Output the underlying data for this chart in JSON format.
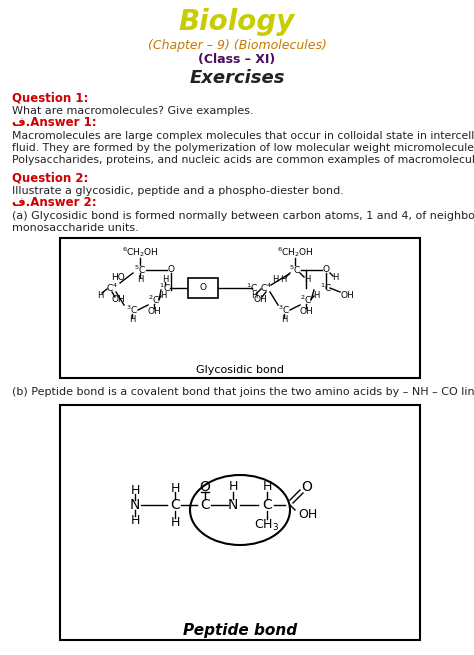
{
  "title": "Biology",
  "subtitle1": "(Chapter – 9) (Biomolecules)",
  "subtitle2": "(Class – XI)",
  "section": "Exercises",
  "q1_label": "Question 1:",
  "q1_text": "What are macromolecules? Give examples.",
  "a1_label": "ف.Answer 1:",
  "a1_line1": "Macromolecules are large complex molecules that occur in colloidal state in intercellular",
  "a1_line2": "fluid. They are formed by the polymerization of low molecular weight micromolecules.",
  "a1_line3": "Polysaccharides, proteins, and nucleic acids are common examples of macromolecules.",
  "q2_label": "Question 2:",
  "q2_text": "Illustrate a glycosidic, peptide and a phospho-diester bond.",
  "a2_label": "ف.Answer 2:",
  "a2a_line1": "(a) Glycosidic bond is formed normally between carbon atoms, 1 and 4, of neighbouring",
  "a2a_line2": "monosaccharide units.",
  "glycosidic_label": "Glycosidic bond",
  "a2b_text": "(b) Peptide bond is a covalent bond that joins the two amino acids by – NH – CO linkage.",
  "peptide_label": "Peptide bond",
  "title_color": "#c8cc00",
  "subtitle1_color": "#c87800",
  "subtitle2_color": "#4a1060",
  "question_color": "#cc0000",
  "answer_label_color": "#cc0000",
  "text_color": "#222222",
  "bg_color": "#ffffff"
}
